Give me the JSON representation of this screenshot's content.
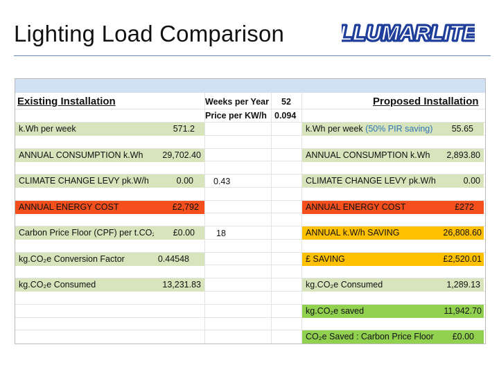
{
  "slide": {
    "title": "Lighting Load Comparison",
    "logo_text": "LLUMARLITE"
  },
  "existing": {
    "heading": "Existing Installation",
    "rows": [
      {
        "label": "k.Wh per week",
        "value": "571.2"
      },
      {
        "label": "ANNUAL CONSUMPTION k.Wh",
        "value": "29,702.40"
      },
      {
        "label": "CLIMATE CHANGE LEVY pk.W/h",
        "value": "0.00"
      },
      {
        "label": "ANNUAL ENERGY COST",
        "value": "£2,792"
      },
      {
        "label": "Carbon Price Floor (CPF) per t.CO₂",
        "value": "£0.00"
      },
      {
        "label": "kg.CO₂e Conversion Factor",
        "value": "0.44548"
      },
      {
        "label": "kg.CO₂e Consumed",
        "value": "13,231.83"
      }
    ]
  },
  "middle": {
    "weeks_label": "Weeks per Year",
    "weeks_value": "52",
    "price_label": "Price per KW/h",
    "price_value": "0.094",
    "levy_rate": "0.43",
    "cpf_rate": "18"
  },
  "proposed": {
    "heading": "Proposed Installation",
    "kwh_label": "k.Wh per week",
    "kwh_pir": "(50% PIR saving)",
    "kwh_value": "55.65",
    "rows": [
      {
        "label": "ANNUAL CONSUMPTION k.Wh",
        "value": "2,893.80"
      },
      {
        "label": "CLIMATE CHANGE LEVY pk.W/h",
        "value": "0.00"
      },
      {
        "label": "ANNUAL ENERGY COST",
        "value": "£272"
      },
      {
        "label": "ANNUAL k.W/h SAVING",
        "value": "26,808.60"
      },
      {
        "label": "£ SAVING",
        "value": "£2,520.01"
      },
      {
        "label": "kg.CO₂e Consumed",
        "value": "1,289.13"
      },
      {
        "label": "kg.CO₂e saved",
        "value": "11,942.70"
      },
      {
        "label": "CO₂e Saved : Carbon Price Floor",
        "value": "£0.00"
      }
    ]
  },
  "colors": {
    "green": "#d8e4bc",
    "red": "#f44f1c",
    "orange": "#ffc000",
    "bright_green": "#92d050",
    "pir_blue": "#2e75b6",
    "logo_blue": "#1f3f9a"
  }
}
